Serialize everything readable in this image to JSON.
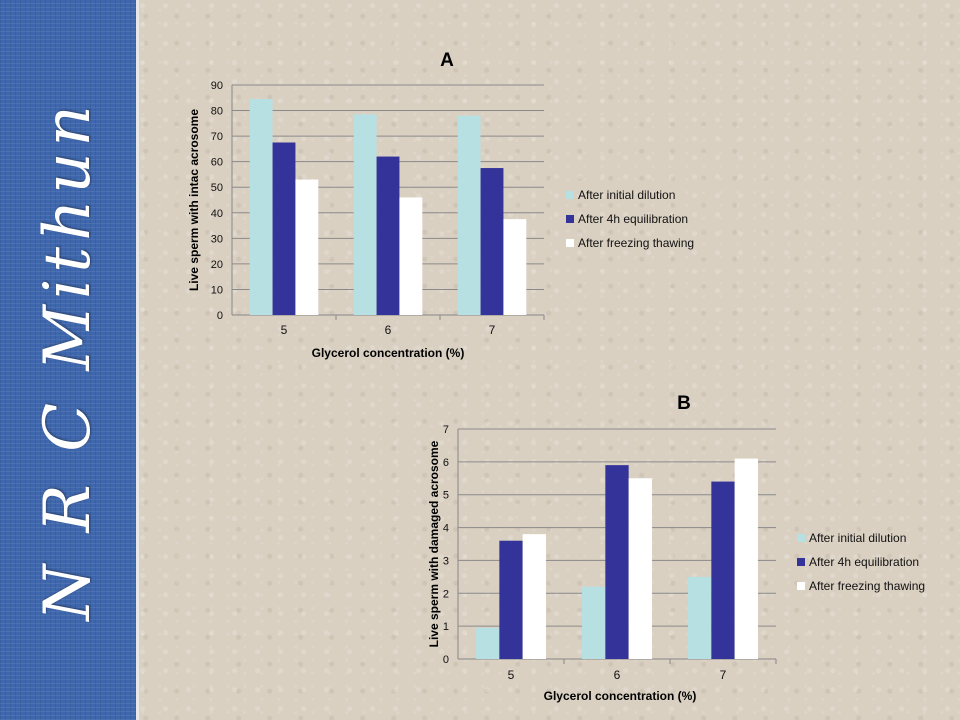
{
  "sidebar": {
    "text": "N R C Mithun"
  },
  "chart_data": [
    {
      "type": "bar",
      "title": "A",
      "xlabel": "Glycerol concentration (%)",
      "ylabel": "Live sperm with intac acrosome",
      "categories": [
        "5",
        "6",
        "7"
      ],
      "ylim": [
        0,
        90
      ],
      "yticks": [
        0,
        10,
        20,
        30,
        40,
        50,
        60,
        70,
        80,
        90
      ],
      "grid": true,
      "legend_position": "right",
      "series": [
        {
          "name": "After initial dilution",
          "color": "#b7e0e3",
          "values": [
            84.5,
            78.5,
            78
          ]
        },
        {
          "name": "After 4h equilibration",
          "color": "#333399",
          "values": [
            67.5,
            62,
            57.5
          ]
        },
        {
          "name": "After freezing thawing",
          "color": "#ffffff",
          "values": [
            53,
            46,
            37.5
          ]
        }
      ]
    },
    {
      "type": "bar",
      "title": "B",
      "xlabel": "Glycerol concentration (%)",
      "ylabel": "Live sperm with damaged acrosome",
      "categories": [
        "5",
        "6",
        "7"
      ],
      "ylim": [
        0,
        7
      ],
      "yticks": [
        0,
        1,
        2,
        3,
        4,
        5,
        6,
        7
      ],
      "grid": true,
      "legend_position": "right",
      "series": [
        {
          "name": "After initial dilution",
          "color": "#b7e0e3",
          "values": [
            0.95,
            2.2,
            2.5
          ]
        },
        {
          "name": "After 4h equilibration",
          "color": "#333399",
          "values": [
            3.6,
            5.9,
            5.4
          ]
        },
        {
          "name": "After freezing thawing",
          "color": "#ffffff",
          "values": [
            3.8,
            5.5,
            6.1
          ]
        }
      ]
    }
  ]
}
